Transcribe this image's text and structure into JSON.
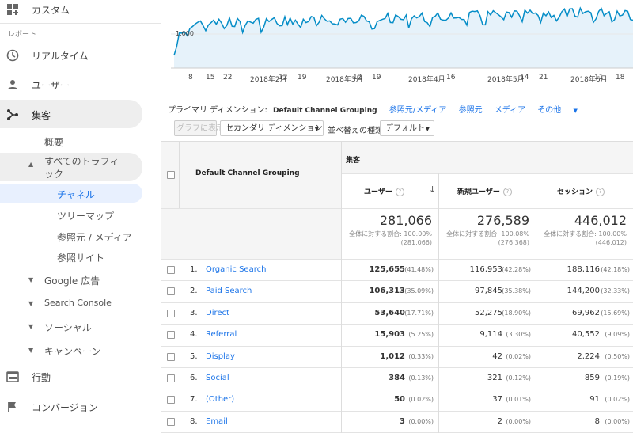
{
  "sidebar": {
    "custom": "カスタム",
    "section_label": "レポート",
    "realtime": "リアルタイム",
    "users": "ユーザー",
    "acquisition": "集客",
    "overview": "概要",
    "all_traffic": "すべてのトラフィ\nック",
    "channels": "チャネル",
    "treemap": "ツリーマップ",
    "source_medium": "参照元 / メディア",
    "referrals": "参照サイト",
    "google_ads": "Google 広告",
    "search_console": "Search Console",
    "social": "ソーシャル",
    "campaigns": "キャンペーン",
    "behavior": "行動",
    "conversions": "コンバージョン"
  },
  "chart": {
    "ymark": "1,000",
    "line_color": "#058dc7",
    "fill_color": "#e6f2fa",
    "xticks": [
      "8",
      "15",
      "22",
      "2018年2月",
      "12",
      "19",
      "2018年3月",
      "12",
      "19",
      "2018年4月",
      "16",
      "2018年5月",
      "14",
      "21",
      "2018年6月",
      "11",
      "18"
    ]
  },
  "dimbar": {
    "label": "プライマリ ディメンション:",
    "active": "Default Channel Grouping",
    "opt1": "参照元/メディア",
    "opt2": "参照元",
    "opt3": "メディア",
    "opt4": "その他"
  },
  "controls": {
    "chart_btn": "グラフに表示",
    "secondary": "セカンダリ ディメンション",
    "sort_label": "並べ替えの種類:",
    "sort_value": "デフォルト"
  },
  "table": {
    "dim_header": "Default Channel Grouping",
    "group_header": "集客",
    "col_users": "ユーザー",
    "col_new_users": "新規ユーザー",
    "col_sessions": "セッション",
    "totals": {
      "users": "281,066",
      "users_pct": "全体に対する割合: 100.00%",
      "users_sub": "(281,066)",
      "new_users": "276,589",
      "new_users_pct": "全体に対する割合: 100.08%",
      "new_users_sub": "(276,368)",
      "sessions": "446,012",
      "sessions_pct": "全体に対する割合: 100.00%",
      "sessions_sub": "(446,012)"
    },
    "rows": [
      {
        "n": "1.",
        "label": "Organic Search",
        "users": "125,655",
        "users_p": "(41.48%)",
        "new": "116,953",
        "new_p": "(42.28%)",
        "sess": "188,116",
        "sess_p": "(42.18%)"
      },
      {
        "n": "2.",
        "label": "Paid Search",
        "users": "106,313",
        "users_p": "(35.09%)",
        "new": "97,845",
        "new_p": "(35.38%)",
        "sess": "144,200",
        "sess_p": "(32.33%)"
      },
      {
        "n": "3.",
        "label": "Direct",
        "users": "53,640",
        "users_p": "(17.71%)",
        "new": "52,275",
        "new_p": "(18.90%)",
        "sess": "69,962",
        "sess_p": "(15.69%)"
      },
      {
        "n": "4.",
        "label": "Referral",
        "users": "15,903",
        "users_p": "(5.25%)",
        "new": "9,114",
        "new_p": "(3.30%)",
        "sess": "40,552",
        "sess_p": "(9.09%)"
      },
      {
        "n": "5.",
        "label": "Display",
        "users": "1,012",
        "users_p": "(0.33%)",
        "new": "42",
        "new_p": "(0.02%)",
        "sess": "2,224",
        "sess_p": "(0.50%)"
      },
      {
        "n": "6.",
        "label": "Social",
        "users": "384",
        "users_p": "(0.13%)",
        "new": "321",
        "new_p": "(0.12%)",
        "sess": "859",
        "sess_p": "(0.19%)"
      },
      {
        "n": "7.",
        "label": "(Other)",
        "users": "50",
        "users_p": "(0.02%)",
        "new": "37",
        "new_p": "(0.01%)",
        "sess": "91",
        "sess_p": "(0.02%)"
      },
      {
        "n": "8.",
        "label": "Email",
        "users": "3",
        "users_p": "(0.00%)",
        "new": "2",
        "new_p": "(0.00%)",
        "sess": "8",
        "sess_p": "(0.00%)"
      }
    ]
  }
}
